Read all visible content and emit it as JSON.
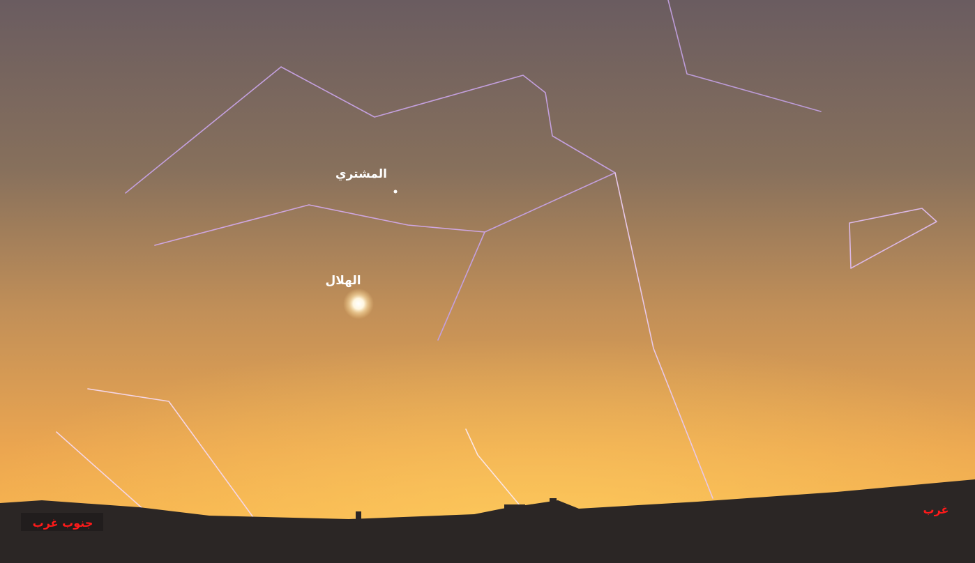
{
  "labels": {
    "jupiter": "المشتري",
    "moon": "الهلال",
    "southwest": "جنوب غرب",
    "west": "غرب"
  }
}
